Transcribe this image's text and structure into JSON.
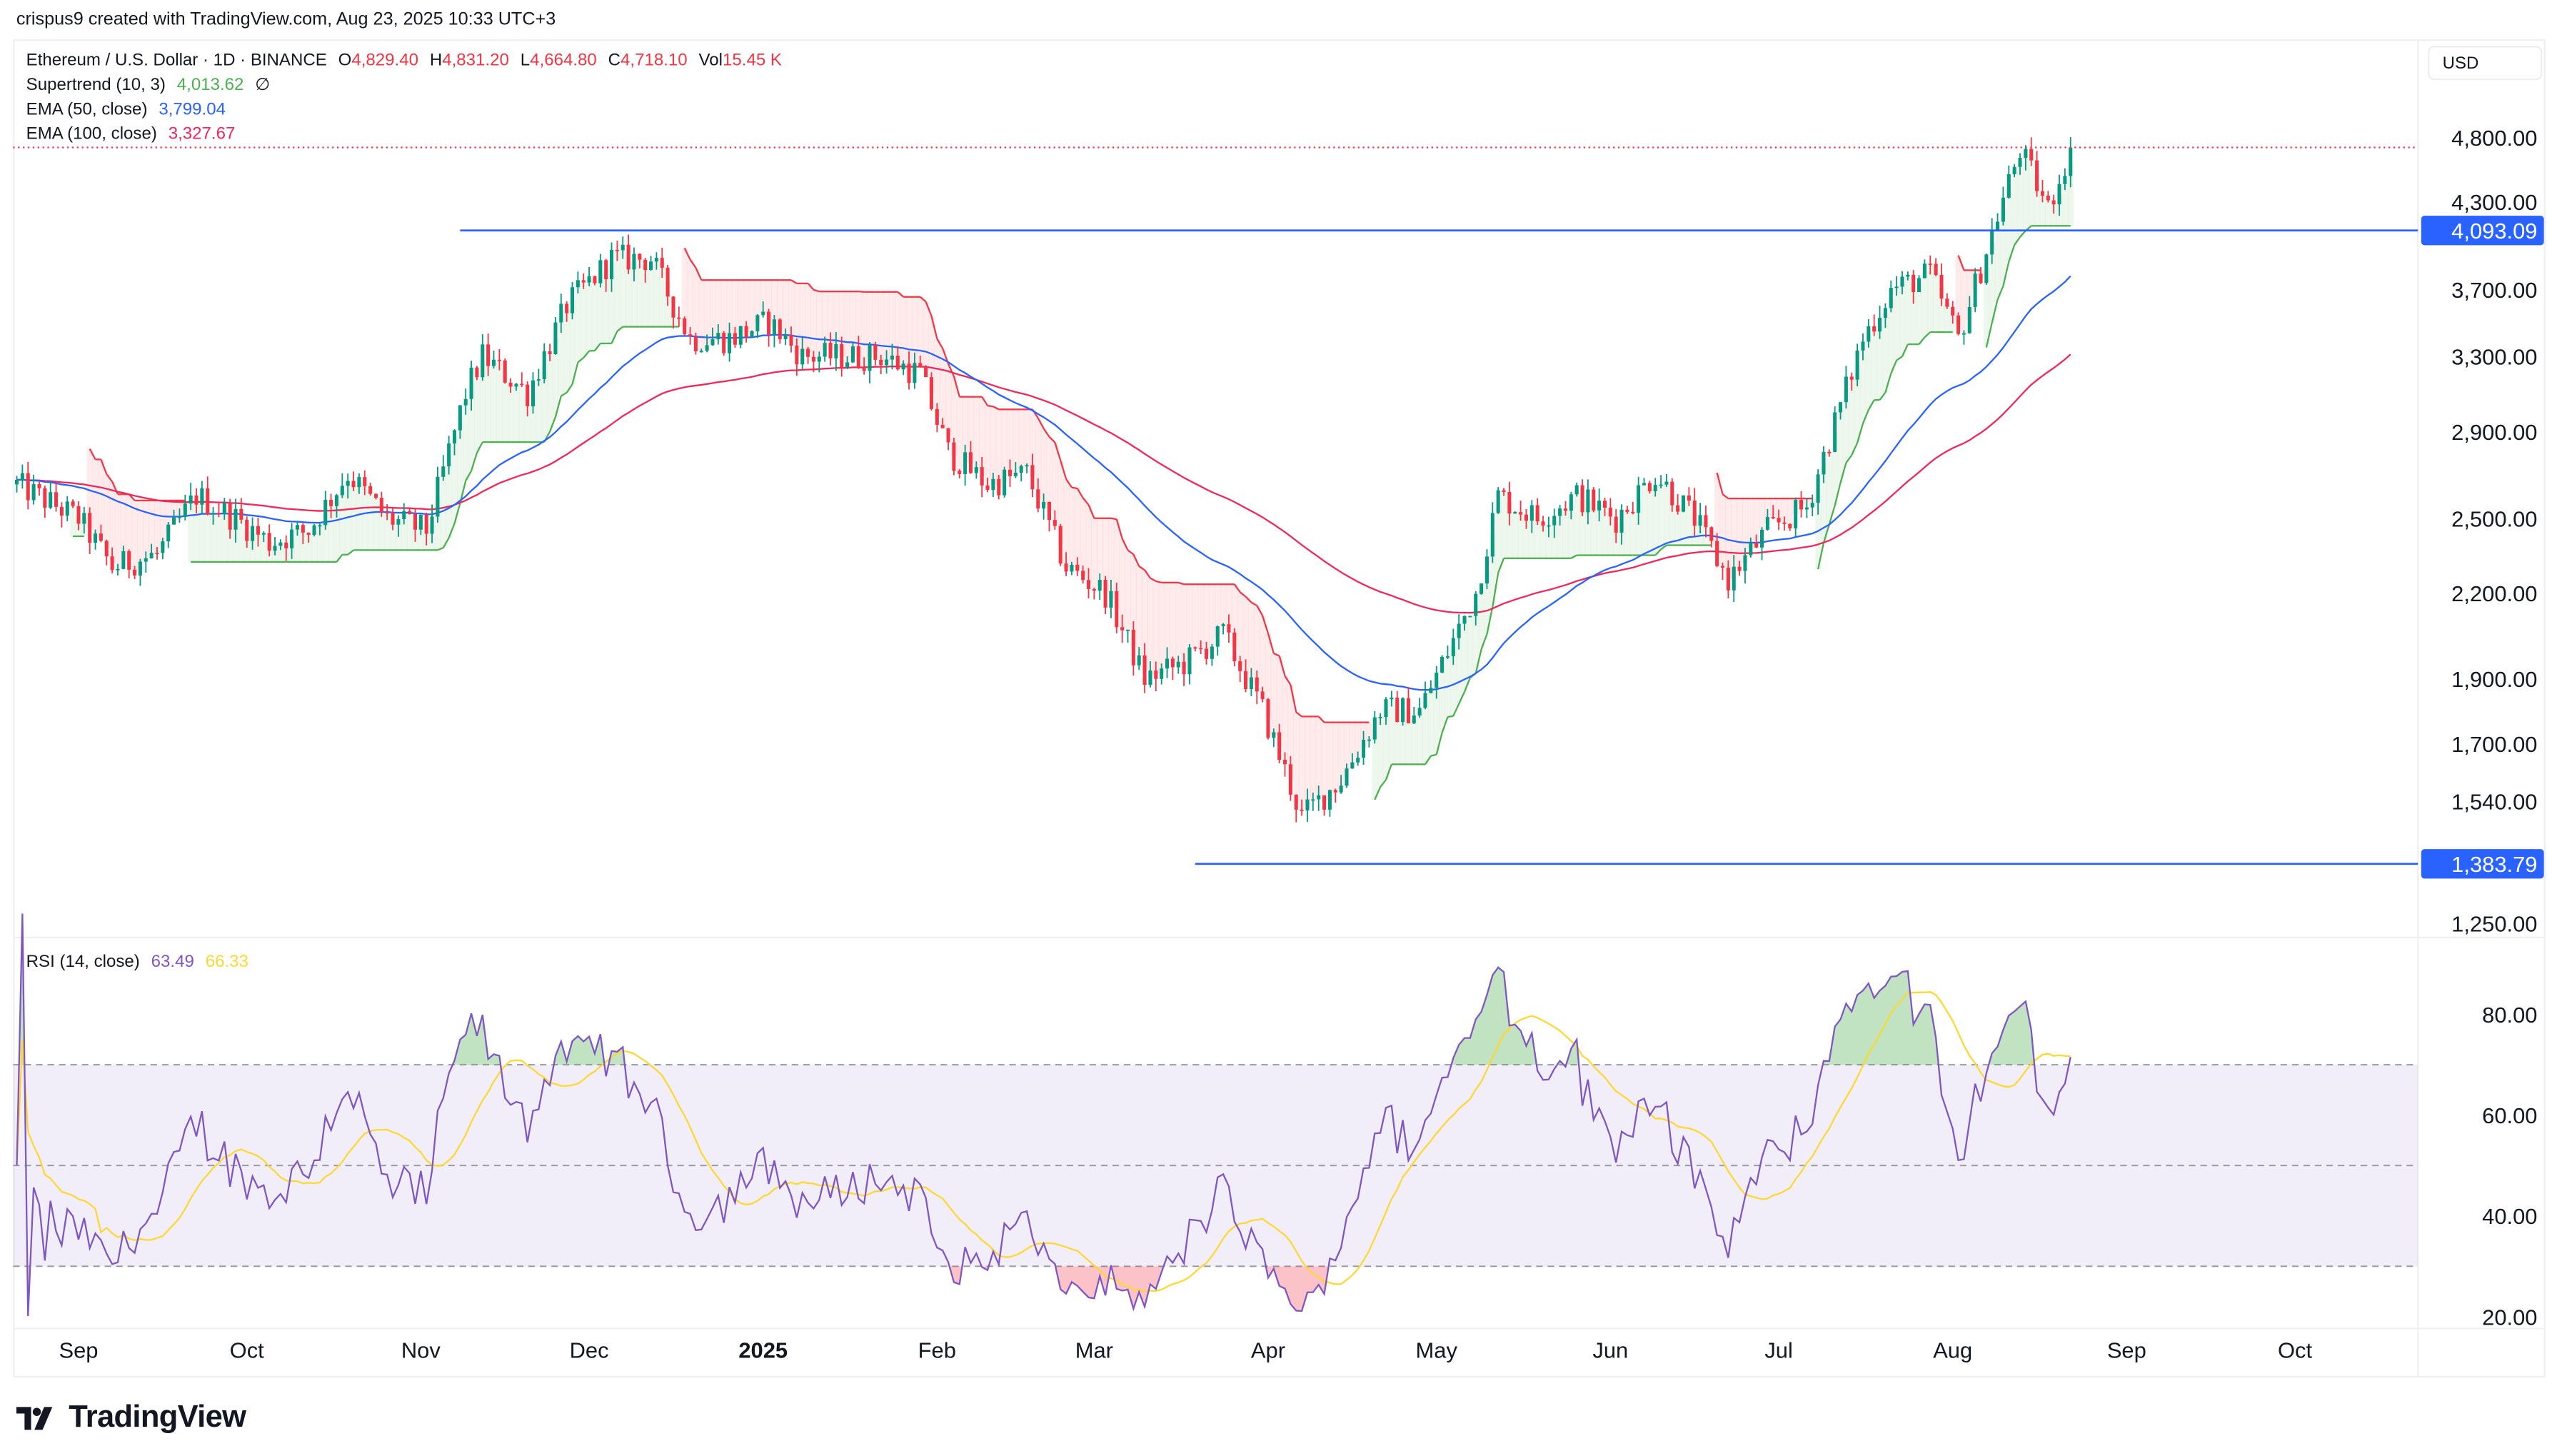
{
  "header": {
    "credit": "crispus9 created with TradingView.com, Aug 23, 2025 10:33 UTC+3"
  },
  "legend": {
    "symbol": "Ethereum / U.S. Dollar · 1D · BINANCE",
    "o_label": "O",
    "o": "4,829.40",
    "h_label": "H",
    "h": "4,831.20",
    "l_label": "L",
    "l": "4,664.80",
    "c_label": "C",
    "c": "4,718.10",
    "vol_label": "Vol",
    "vol": "15.45 K",
    "supertrend_label": "Supertrend (10, 3)",
    "supertrend": "4,013.62",
    "supertrend_icon": "∅",
    "ema50_label": "EMA (50, close)",
    "ema50": "3,799.04",
    "ema100_label": "EMA (100, close)",
    "ema100": "3,327.67",
    "rsi_label": "RSI (14, close)",
    "rsi": "63.49",
    "rsi_ma": "66.33"
  },
  "currency": "USD",
  "colors": {
    "up": "#089981",
    "down": "#f23645",
    "ema50": "#2962ff",
    "ema100": "#f0285a",
    "st_up": "#4caf50",
    "st_down": "#f23645",
    "rsi": "#7e57c2",
    "rsi_ma": "#fdd835",
    "hline": "#2962ff"
  },
  "chart_data": [
    {
      "type": "candlestick",
      "title": "",
      "yscale": "log",
      "ylim": [
        1200,
        5000
      ],
      "y_ticks": [
        "4,800.00",
        "4,300.00",
        "3,700.00",
        "3,300.00",
        "2,900.00",
        "2,500.00",
        "2,200.00",
        "1,900.00",
        "1,700.00",
        "1,540.00",
        "1,250.00"
      ],
      "y_tick_values": [
        4800,
        4300,
        3700,
        3300,
        2900,
        2500,
        2200,
        1900,
        1700,
        1540,
        1250
      ],
      "x_ticks": [
        "Sep",
        "Oct",
        "Nov",
        "Dec",
        "2025",
        "Feb",
        "Mar",
        "Apr",
        "May",
        "Jun",
        "Jul",
        "Aug",
        "Sep",
        "Oct"
      ],
      "x_tick_dates": [
        "2024-09-01",
        "2024-10-01",
        "2024-11-01",
        "2024-12-01",
        "2025-01-01",
        "2025-02-01",
        "2025-03-01",
        "2025-04-01",
        "2025-05-01",
        "2025-06-01",
        "2025-07-01",
        "2025-08-01",
        "2025-09-01",
        "2025-10-01"
      ],
      "approx_closes": [
        [
          "2024-08-21",
          2650
        ],
        [
          "2024-09-01",
          2500
        ],
        [
          "2024-09-07",
          2300
        ],
        [
          "2024-09-15",
          2350
        ],
        [
          "2024-09-22",
          2600
        ],
        [
          "2024-09-29",
          2500
        ],
        [
          "2024-10-05",
          2400
        ],
        [
          "2024-10-12",
          2450
        ],
        [
          "2024-10-19",
          2700
        ],
        [
          "2024-10-26",
          2500
        ],
        [
          "2024-11-02",
          2450
        ],
        [
          "2024-11-09",
          3100
        ],
        [
          "2024-11-12",
          3300
        ],
        [
          "2024-11-20",
          3100
        ],
        [
          "2024-11-27",
          3600
        ],
        [
          "2024-12-05",
          3900
        ],
        [
          "2024-12-12",
          3900
        ],
        [
          "2024-12-19",
          3400
        ],
        [
          "2024-12-26",
          3400
        ],
        [
          "2025-01-02",
          3500
        ],
        [
          "2025-01-08",
          3300
        ],
        [
          "2025-01-15",
          3300
        ],
        [
          "2025-01-22",
          3300
        ],
        [
          "2025-01-29",
          3200
        ],
        [
          "2025-02-03",
          2800
        ],
        [
          "2025-02-10",
          2650
        ],
        [
          "2025-02-17",
          2700
        ],
        [
          "2025-02-24",
          2300
        ],
        [
          "2025-03-03",
          2200
        ],
        [
          "2025-03-10",
          1900
        ],
        [
          "2025-03-17",
          1950
        ],
        [
          "2025-03-24",
          2050
        ],
        [
          "2025-03-31",
          1800
        ],
        [
          "2025-04-07",
          1500
        ],
        [
          "2025-04-14",
          1600
        ],
        [
          "2025-04-21",
          1800
        ],
        [
          "2025-04-28",
          1800
        ],
        [
          "2025-05-08",
          2200
        ],
        [
          "2025-05-12",
          2600
        ],
        [
          "2025-05-19",
          2500
        ],
        [
          "2025-05-26",
          2600
        ],
        [
          "2025-06-02",
          2500
        ],
        [
          "2025-06-09",
          2700
        ],
        [
          "2025-06-16",
          2500
        ],
        [
          "2025-06-22",
          2250
        ],
        [
          "2025-06-29",
          2450
        ],
        [
          "2025-07-06",
          2550
        ],
        [
          "2025-07-11",
          2950
        ],
        [
          "2025-07-16",
          3400
        ],
        [
          "2025-07-21",
          3700
        ],
        [
          "2025-07-28",
          3800
        ],
        [
          "2025-08-02",
          3400
        ],
        [
          "2025-08-09",
          4200
        ],
        [
          "2025-08-13",
          4700
        ],
        [
          "2025-08-18",
          4250
        ],
        [
          "2025-08-22",
          4718.1
        ]
      ],
      "horizontal_lines": [
        {
          "value": 4093.09,
          "label": "4,093.09",
          "from": "2024-11-08"
        },
        {
          "value": 1383.79,
          "label": "1,383.79",
          "from": "2025-03-19"
        }
      ],
      "last_price": 4718.1,
      "series": [
        {
          "name": "Supertrend (10, 3)"
        },
        {
          "name": "EMA (50, close)"
        },
        {
          "name": "EMA (100, close)"
        }
      ]
    },
    {
      "type": "line",
      "title": "RSI (14, close)",
      "ylim": [
        15,
        92
      ],
      "y_ticks": [
        "80.00",
        "60.00",
        "40.00",
        "20.00"
      ],
      "y_tick_values": [
        80,
        60,
        40,
        20
      ],
      "bands": [
        70,
        50,
        30
      ]
    }
  ],
  "branding": {
    "logo_text": "TradingView"
  }
}
